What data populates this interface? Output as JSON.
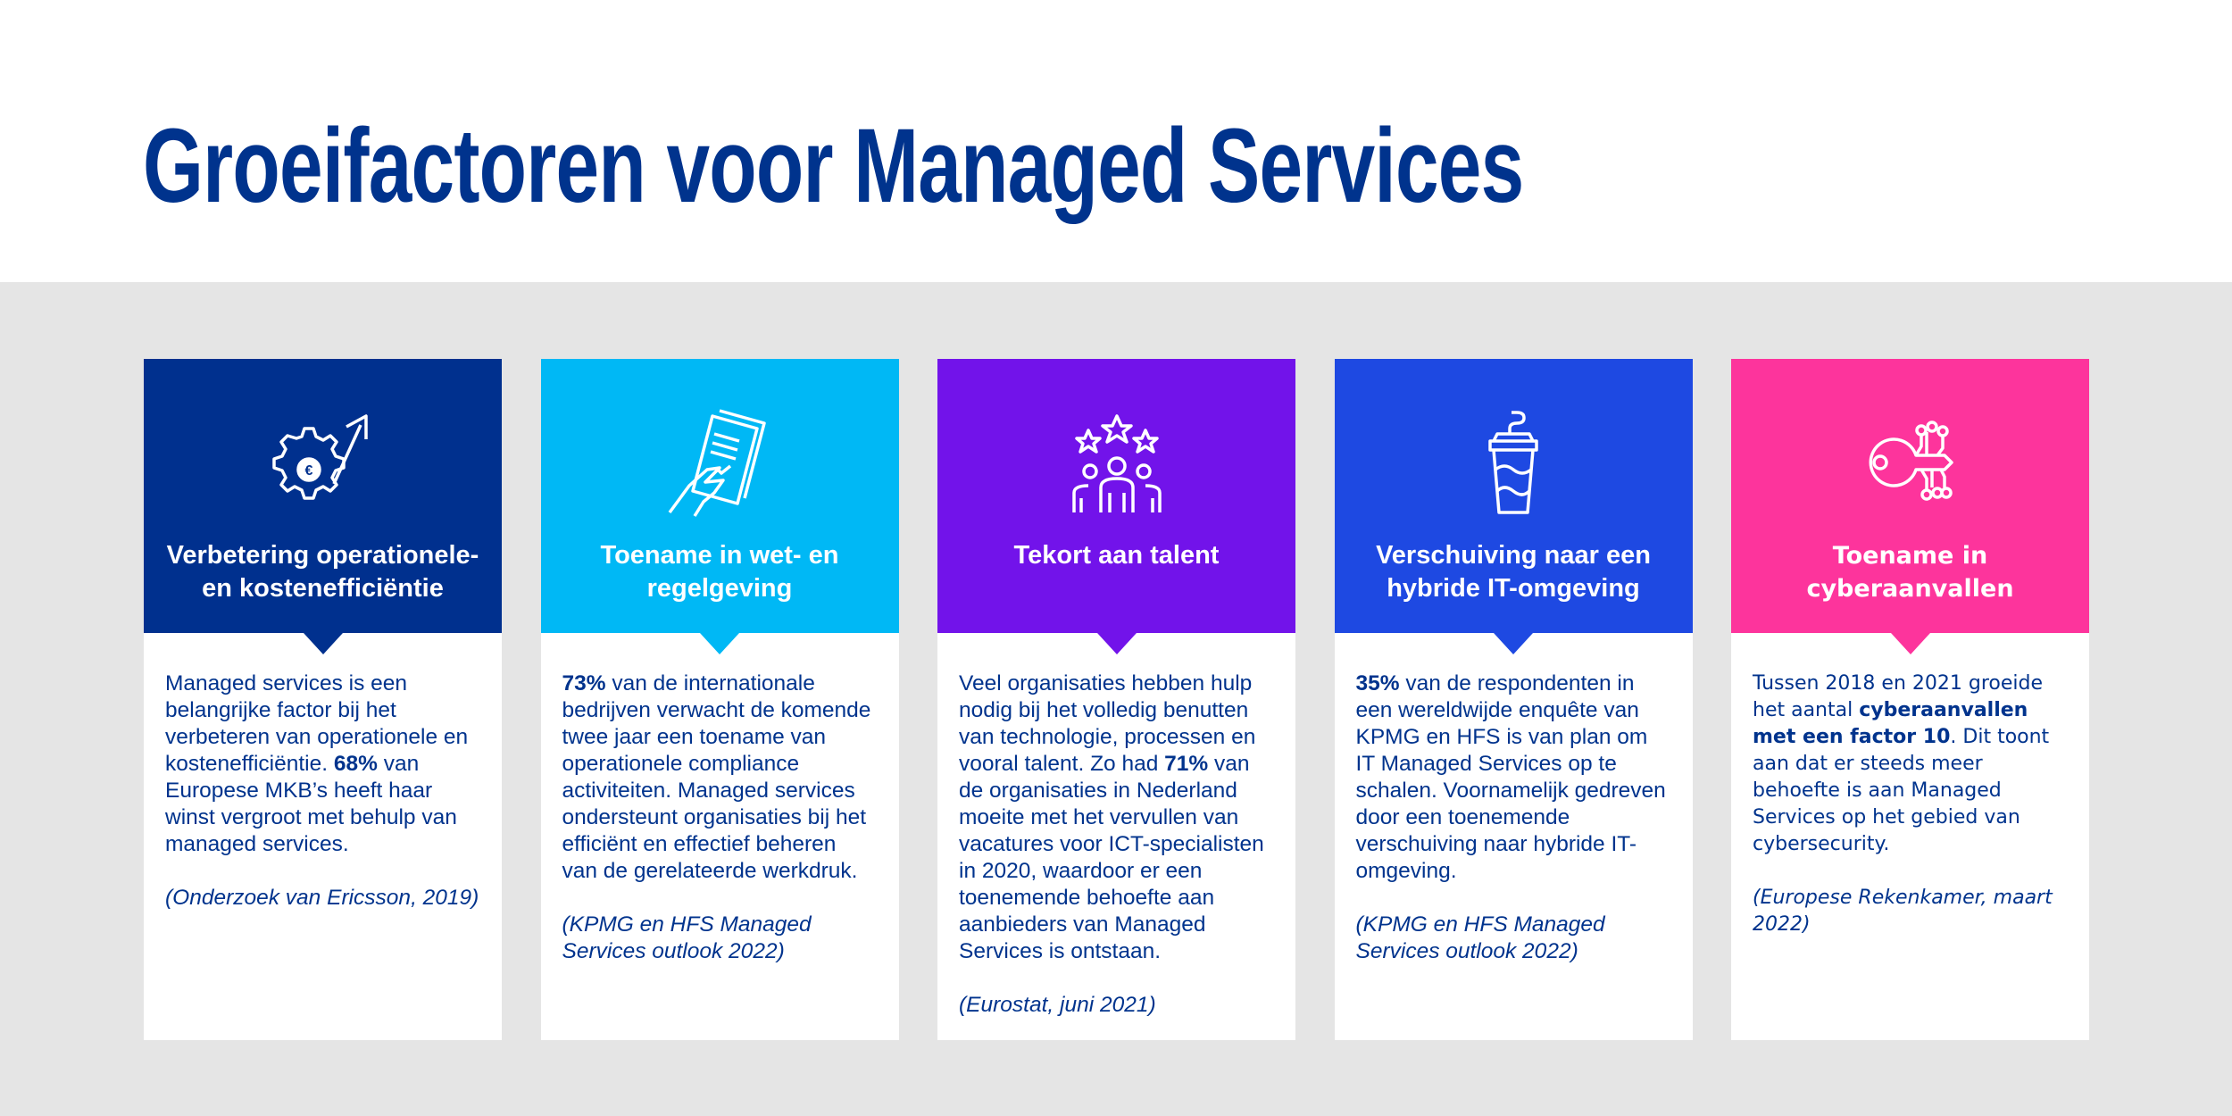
{
  "title": "Groeifactoren voor Managed Services",
  "cards": [
    {
      "color": "#00308e",
      "icon": "gear-euro-arrow-icon",
      "title_l1": "Verbetering operationele-",
      "title_l2": "en kostenefficiëntie",
      "text": [
        {
          "t": "Managed services is een belangrijke factor bij het verbeteren van operationele en kostenefficiëntie. ",
          "b": false
        },
        {
          "t": "68%",
          "b": true
        },
        {
          "t": " van Europese MKB’s heeft haar winst vergroot met behulp van managed services.",
          "b": false
        }
      ],
      "source": "(Onderzoek van Ericsson, 2019)"
    },
    {
      "color": "#00b8f5",
      "icon": "hand-document-icon",
      "title_l1": "Toename in wet- en",
      "title_l2": "regelgeving",
      "text": [
        {
          "t": "73%",
          "b": true
        },
        {
          "t": " van de internationale bedrijven verwacht de komende twee jaar een toename van operationele compliance activiteiten. Managed services ondersteunt organisaties bij het efficiënt en effectief beheren van de gerelateerde werkdruk.",
          "b": false
        }
      ],
      "source": "(KPMG en HFS Managed Services outlook 2022)"
    },
    {
      "color": "#7213ea",
      "icon": "people-stars-icon",
      "title_l1": "Tekort aan talent",
      "title_l2": "",
      "text": [
        {
          "t": "Veel organisaties hebben hulp nodig bij het volledig benutten van technologie, processen en vooral talent. Zo had ",
          "b": false
        },
        {
          "t": "71%",
          "b": true
        },
        {
          "t": " van de organisaties in Nederland moeite met het vervullen van vacatures voor ICT-specialisten in 2020, waardoor er een toenemende behoefte aan aanbieders van Managed Services is ontstaan.",
          "b": false
        }
      ],
      "source": "(Eurostat, juni 2021)"
    },
    {
      "color": "#1e49e2",
      "icon": "cup-icon",
      "title_l1": "Verschuiving naar een",
      "title_l2": "hybride IT-omgeving",
      "text": [
        {
          "t": "35%",
          "b": true
        },
        {
          "t": " van de respondenten in een wereldwijde enquête van KPMG en HFS is van plan om IT Managed Services op te schalen. Voornamelijk gedreven door een toenemende verschuiving naar hybride IT-omgeving.",
          "b": false
        }
      ],
      "source": "(KPMG en HFS Managed Services outlook 2022)"
    },
    {
      "color": "#fd349c",
      "icon": "digital-key-icon",
      "title_l1": "Toename in",
      "title_l2": "cyberaanvallen",
      "text": [
        {
          "t": "Tussen 2018 en 2021 groeide het aantal ",
          "b": false
        },
        {
          "t": "cyberaanvallen met een factor 10",
          "b": true
        },
        {
          "t": ". Dit toont aan dat er steeds meer behoefte is aan Managed Services op het gebied van cybersecurity.",
          "b": false
        }
      ],
      "source": "(Europese Rekenkamer, maart 2022)"
    }
  ]
}
